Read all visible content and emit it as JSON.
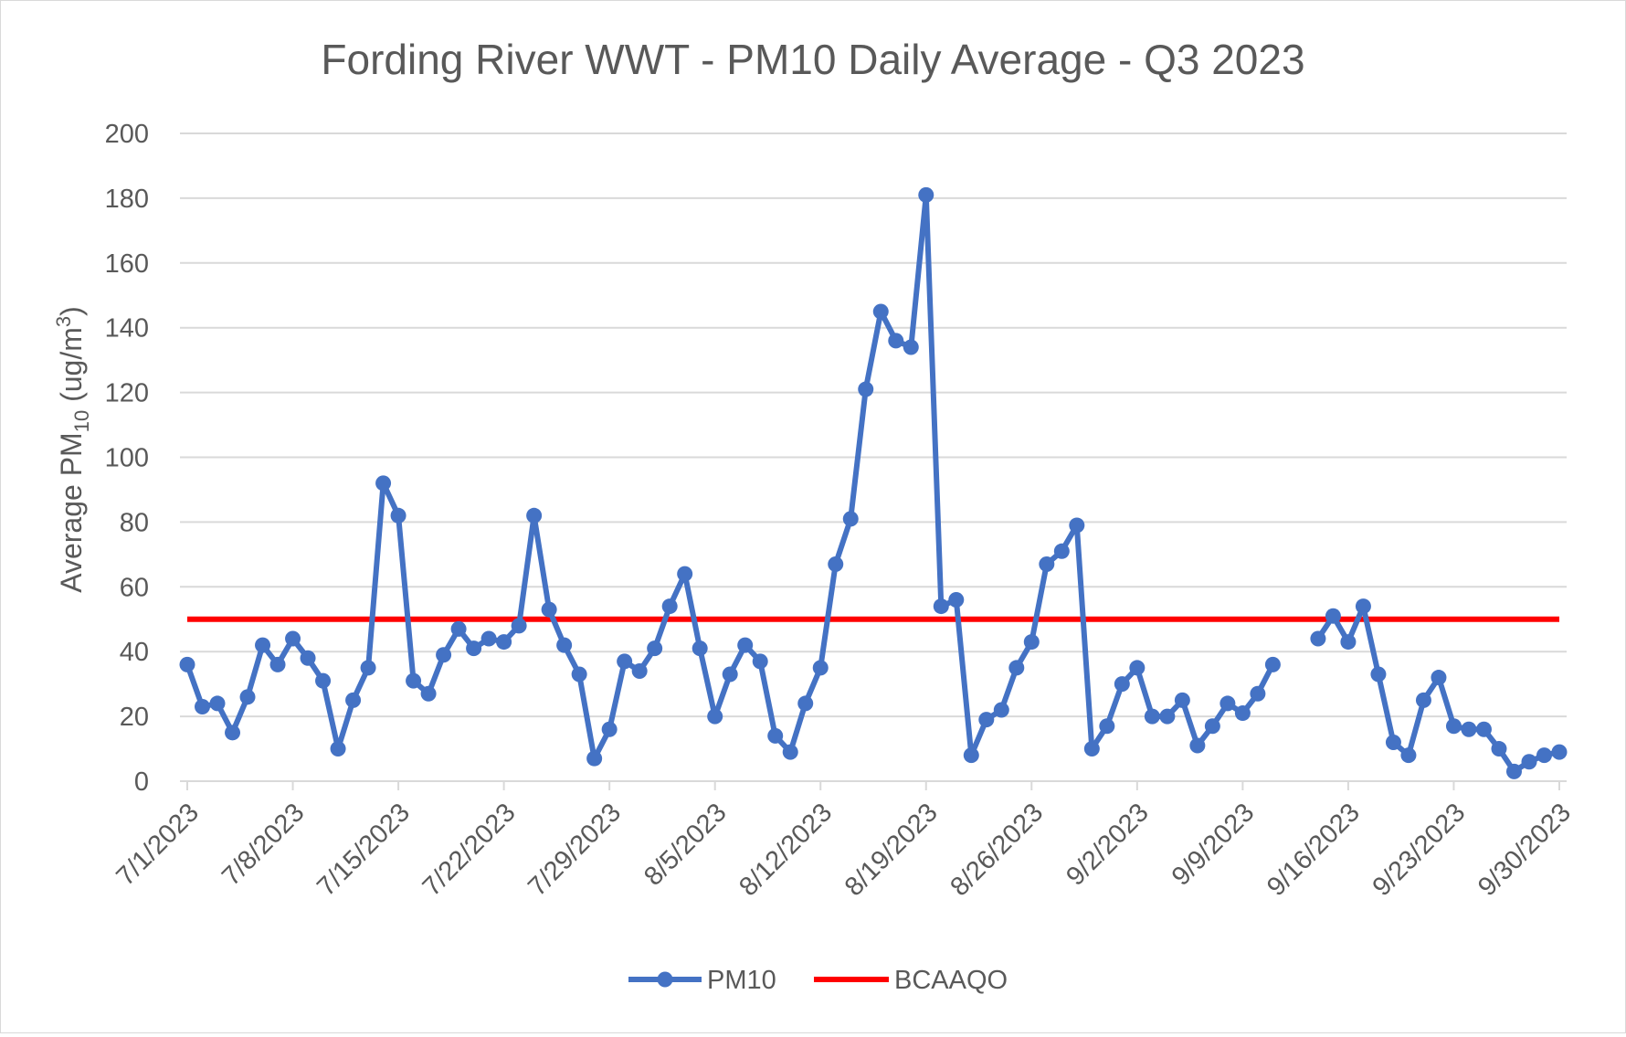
{
  "chart_data": {
    "type": "line",
    "title": "Fording River WWT - PM10 Daily Average - Q3 2023",
    "ylabel": {
      "prefix": "Average PM",
      "subscript": "10",
      "unit_open": " (ug/m",
      "superscript": "3",
      "unit_close": ")"
    },
    "xlabel": "",
    "ylim": [
      0,
      200
    ],
    "yticks": [
      0,
      20,
      40,
      60,
      80,
      100,
      120,
      140,
      160,
      180,
      200
    ],
    "xlim": [
      "2023-07-01",
      "2023-09-30"
    ],
    "xtick_labels": [
      "7/1/2023",
      "7/8/2023",
      "7/15/2023",
      "7/22/2023",
      "7/29/2023",
      "8/5/2023",
      "8/12/2023",
      "8/19/2023",
      "8/26/2023",
      "9/2/2023",
      "9/9/2023",
      "9/16/2023",
      "9/23/2023",
      "9/30/2023"
    ],
    "grid": "horizontal",
    "legend_position": "bottom",
    "colors": {
      "PM10": "#4472c4",
      "BCAAQO": "#ff0000",
      "grid": "#d9d9d9",
      "text": "#595959"
    },
    "series": [
      {
        "name": "PM10",
        "x": [
          "2023-07-01",
          "2023-07-02",
          "2023-07-03",
          "2023-07-04",
          "2023-07-05",
          "2023-07-06",
          "2023-07-07",
          "2023-07-08",
          "2023-07-09",
          "2023-07-10",
          "2023-07-11",
          "2023-07-12",
          "2023-07-13",
          "2023-07-14",
          "2023-07-15",
          "2023-07-16",
          "2023-07-17",
          "2023-07-18",
          "2023-07-19",
          "2023-07-20",
          "2023-07-21",
          "2023-07-22",
          "2023-07-23",
          "2023-07-24",
          "2023-07-25",
          "2023-07-26",
          "2023-07-27",
          "2023-07-28",
          "2023-07-29",
          "2023-07-30",
          "2023-07-31",
          "2023-08-01",
          "2023-08-02",
          "2023-08-03",
          "2023-08-04",
          "2023-08-05",
          "2023-08-06",
          "2023-08-07",
          "2023-08-08",
          "2023-08-09",
          "2023-08-10",
          "2023-08-11",
          "2023-08-12",
          "2023-08-13",
          "2023-08-14",
          "2023-08-15",
          "2023-08-16",
          "2023-08-17",
          "2023-08-18",
          "2023-08-19",
          "2023-08-20",
          "2023-08-21",
          "2023-08-22",
          "2023-08-23",
          "2023-08-24",
          "2023-08-25",
          "2023-08-26",
          "2023-08-27",
          "2023-08-28",
          "2023-08-29",
          "2023-08-30",
          "2023-08-31",
          "2023-09-01",
          "2023-09-02",
          "2023-09-03",
          "2023-09-04",
          "2023-09-05",
          "2023-09-06",
          "2023-09-07",
          "2023-09-08",
          "2023-09-09",
          "2023-09-10",
          "2023-09-11",
          "2023-09-12",
          "2023-09-13",
          "2023-09-14",
          "2023-09-15",
          "2023-09-16",
          "2023-09-17",
          "2023-09-18",
          "2023-09-19",
          "2023-09-20",
          "2023-09-21",
          "2023-09-22",
          "2023-09-23",
          "2023-09-24",
          "2023-09-25",
          "2023-09-26",
          "2023-09-27",
          "2023-09-28",
          "2023-09-29",
          "2023-09-30"
        ],
        "values": [
          36,
          23,
          24,
          15,
          26,
          42,
          36,
          44,
          38,
          31,
          10,
          25,
          35,
          92,
          82,
          31,
          27,
          39,
          47,
          41,
          44,
          43,
          48,
          82,
          53,
          42,
          33,
          7,
          16,
          37,
          34,
          41,
          54,
          64,
          41,
          20,
          33,
          42,
          37,
          14,
          9,
          24,
          35,
          67,
          81,
          121,
          145,
          136,
          134,
          181,
          54,
          56,
          8,
          19,
          22,
          35,
          43,
          67,
          71,
          79,
          10,
          17,
          30,
          35,
          20,
          20,
          25,
          11,
          17,
          24,
          21,
          27,
          36,
          null,
          null,
          44,
          51,
          43,
          54,
          33,
          12,
          8,
          25,
          32,
          17,
          16,
          16,
          10,
          3,
          6,
          8,
          9
        ]
      },
      {
        "name": "BCAAQO",
        "x": [
          "2023-07-01",
          "2023-09-30"
        ],
        "values": [
          50,
          50
        ]
      }
    ]
  }
}
